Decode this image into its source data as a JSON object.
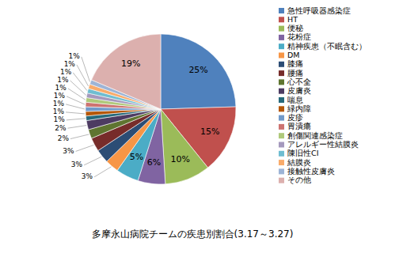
{
  "chart_data": {
    "type": "pie",
    "title": "多摩永山病院チームの疾患別割合(3.17～3.27)",
    "categories": [
      "急性呼吸器感染症",
      "HT",
      "便秘",
      "花粉症",
      "精神疾患（不眠含む）",
      "DM",
      "膝痛",
      "腰痛",
      "心不全",
      "皮膚炎",
      "喘息",
      "緑内障",
      "皮疹",
      "胃潰瘍",
      "創傷関連感染症",
      "アレルギー性結膜炎",
      "陳旧性CI",
      "結膜炎",
      "接触性皮膚炎",
      "その他"
    ],
    "values": [
      25,
      15,
      10,
      6,
      5,
      3,
      3,
      3,
      2,
      2,
      1,
      1,
      1,
      1,
      1,
      1,
      1,
      1,
      1,
      19
    ],
    "value_labels": [
      "25%",
      "15%",
      "10%",
      "6%",
      "5%",
      "3%",
      "3%",
      "3%",
      "2%",
      "2%",
      "1%",
      "1%",
      "1%",
      "1%",
      "1%",
      "1%",
      "1%",
      "1%",
      "1%",
      "19%"
    ],
    "colors": [
      "#4f81bd",
      "#c0504d",
      "#9bbb59",
      "#8064a2",
      "#4bacc6",
      "#f79646",
      "#2c4d75",
      "#772c2a",
      "#5f7530",
      "#4d3b62",
      "#276a7c",
      "#b65708",
      "#729aca",
      "#cd7371",
      "#afc97a",
      "#a599bd",
      "#6fbdd1",
      "#f9ab6b",
      "#9db4d6",
      "#dcb0ae"
    ],
    "data_labels": true,
    "legend": "right"
  }
}
